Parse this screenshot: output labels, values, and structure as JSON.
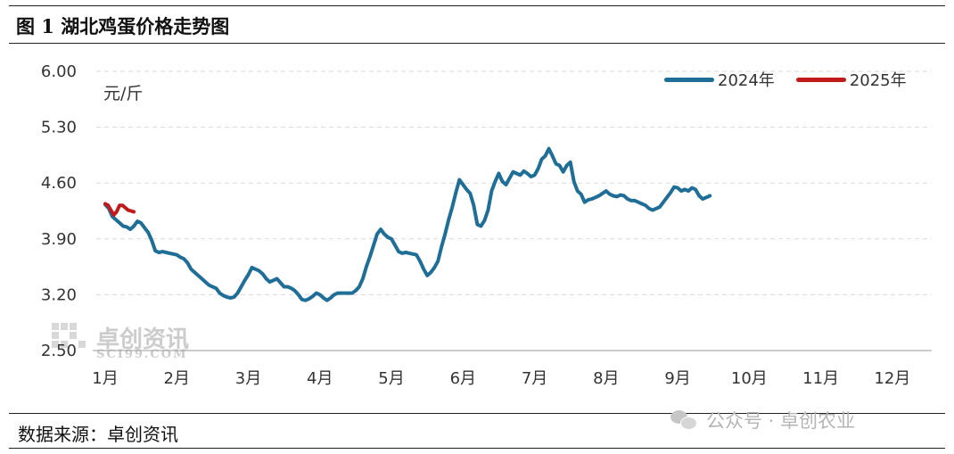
{
  "figure": {
    "title": "图 1  湖北鸡蛋价格走势图",
    "source": "数据来源：卓创资讯",
    "wechat_label": "公众号 · 卓创农业",
    "watermark_text": "卓创资讯",
    "watermark_sub": "SCI99.COM"
  },
  "chart_data": {
    "type": "line",
    "title": "",
    "xlabel": "",
    "ylabel": "元/斤",
    "ylim": [
      2.5,
      6.0
    ],
    "yticks": [
      "6.00",
      "5.30",
      "4.60",
      "3.90",
      "3.20",
      "2.50"
    ],
    "yticks_values": [
      6.0,
      5.3,
      4.6,
      3.9,
      3.2,
      2.5
    ],
    "xticks": [
      "1月",
      "2月",
      "3月",
      "4月",
      "5月",
      "6月",
      "7月",
      "8月",
      "9月",
      "10月",
      "11月",
      "12月"
    ],
    "grid": "horizontal dashed",
    "legend_position": "top-right",
    "series": [
      {
        "name": "2024年",
        "color": "#1f6e97",
        "points": [
          [
            0.0,
            4.33
          ],
          [
            0.05,
            4.28
          ],
          [
            0.1,
            4.18
          ],
          [
            0.15,
            4.14
          ],
          [
            0.2,
            4.1
          ],
          [
            0.25,
            4.06
          ],
          [
            0.3,
            4.05
          ],
          [
            0.35,
            4.02
          ],
          [
            0.4,
            4.06
          ],
          [
            0.45,
            4.12
          ],
          [
            0.5,
            4.1
          ],
          [
            0.55,
            4.04
          ],
          [
            0.6,
            3.98
          ],
          [
            0.65,
            3.88
          ],
          [
            0.7,
            3.75
          ],
          [
            0.75,
            3.73
          ],
          [
            0.8,
            3.74
          ],
          [
            0.85,
            3.73
          ],
          [
            0.9,
            3.72
          ],
          [
            0.95,
            3.71
          ],
          [
            1.0,
            3.7
          ],
          [
            1.05,
            3.67
          ],
          [
            1.1,
            3.65
          ],
          [
            1.15,
            3.6
          ],
          [
            1.2,
            3.52
          ],
          [
            1.25,
            3.48
          ],
          [
            1.3,
            3.44
          ],
          [
            1.35,
            3.4
          ],
          [
            1.4,
            3.36
          ],
          [
            1.45,
            3.32
          ],
          [
            1.5,
            3.3
          ],
          [
            1.55,
            3.28
          ],
          [
            1.6,
            3.22
          ],
          [
            1.65,
            3.19
          ],
          [
            1.7,
            3.17
          ],
          [
            1.75,
            3.16
          ],
          [
            1.8,
            3.17
          ],
          [
            1.85,
            3.22
          ],
          [
            1.9,
            3.3
          ],
          [
            1.95,
            3.38
          ],
          [
            2.0,
            3.45
          ],
          [
            2.05,
            3.54
          ],
          [
            2.1,
            3.52
          ],
          [
            2.15,
            3.5
          ],
          [
            2.2,
            3.46
          ],
          [
            2.25,
            3.4
          ],
          [
            2.3,
            3.36
          ],
          [
            2.35,
            3.38
          ],
          [
            2.4,
            3.4
          ],
          [
            2.45,
            3.35
          ],
          [
            2.5,
            3.3
          ],
          [
            2.55,
            3.3
          ],
          [
            2.6,
            3.28
          ],
          [
            2.65,
            3.25
          ],
          [
            2.7,
            3.2
          ],
          [
            2.75,
            3.14
          ],
          [
            2.8,
            3.13
          ],
          [
            2.85,
            3.15
          ],
          [
            2.9,
            3.18
          ],
          [
            2.95,
            3.22
          ],
          [
            3.0,
            3.2
          ],
          [
            3.05,
            3.16
          ],
          [
            3.1,
            3.13
          ],
          [
            3.15,
            3.16
          ],
          [
            3.2,
            3.2
          ],
          [
            3.25,
            3.22
          ],
          [
            3.3,
            3.22
          ],
          [
            3.35,
            3.22
          ],
          [
            3.4,
            3.22
          ],
          [
            3.45,
            3.22
          ],
          [
            3.5,
            3.25
          ],
          [
            3.55,
            3.3
          ],
          [
            3.6,
            3.4
          ],
          [
            3.65,
            3.55
          ],
          [
            3.7,
            3.68
          ],
          [
            3.75,
            3.82
          ],
          [
            3.8,
            3.96
          ],
          [
            3.85,
            4.02
          ],
          [
            3.9,
            3.96
          ],
          [
            3.95,
            3.92
          ],
          [
            4.0,
            3.9
          ],
          [
            4.05,
            3.82
          ],
          [
            4.1,
            3.74
          ],
          [
            4.15,
            3.72
          ],
          [
            4.2,
            3.73
          ],
          [
            4.25,
            3.72
          ],
          [
            4.3,
            3.71
          ],
          [
            4.35,
            3.7
          ],
          [
            4.4,
            3.62
          ],
          [
            4.45,
            3.52
          ],
          [
            4.5,
            3.44
          ],
          [
            4.55,
            3.48
          ],
          [
            4.6,
            3.54
          ],
          [
            4.65,
            3.62
          ],
          [
            4.7,
            3.8
          ],
          [
            4.75,
            3.96
          ],
          [
            4.8,
            4.14
          ],
          [
            4.85,
            4.3
          ],
          [
            4.9,
            4.48
          ],
          [
            4.95,
            4.64
          ],
          [
            5.0,
            4.58
          ],
          [
            5.05,
            4.52
          ],
          [
            5.1,
            4.47
          ],
          [
            5.15,
            4.32
          ],
          [
            5.2,
            4.08
          ],
          [
            5.25,
            4.06
          ],
          [
            5.3,
            4.13
          ],
          [
            5.35,
            4.26
          ],
          [
            5.4,
            4.5
          ],
          [
            5.45,
            4.62
          ],
          [
            5.5,
            4.72
          ],
          [
            5.55,
            4.62
          ],
          [
            5.6,
            4.58
          ],
          [
            5.65,
            4.66
          ],
          [
            5.7,
            4.74
          ],
          [
            5.75,
            4.72
          ],
          [
            5.8,
            4.7
          ],
          [
            5.85,
            4.75
          ],
          [
            5.9,
            4.72
          ],
          [
            5.95,
            4.68
          ],
          [
            6.0,
            4.7
          ],
          [
            6.05,
            4.78
          ],
          [
            6.1,
            4.9
          ],
          [
            6.15,
            4.94
          ],
          [
            6.2,
            5.03
          ],
          [
            6.25,
            4.94
          ],
          [
            6.3,
            4.84
          ],
          [
            6.35,
            4.82
          ],
          [
            6.4,
            4.74
          ],
          [
            6.45,
            4.82
          ],
          [
            6.5,
            4.86
          ],
          [
            6.55,
            4.62
          ],
          [
            6.6,
            4.5
          ],
          [
            6.65,
            4.46
          ],
          [
            6.7,
            4.36
          ],
          [
            6.75,
            4.39
          ],
          [
            6.8,
            4.4
          ],
          [
            6.85,
            4.42
          ],
          [
            6.9,
            4.44
          ],
          [
            6.95,
            4.47
          ],
          [
            7.0,
            4.5
          ],
          [
            7.05,
            4.46
          ],
          [
            7.1,
            4.44
          ],
          [
            7.15,
            4.43
          ],
          [
            7.2,
            4.45
          ],
          [
            7.25,
            4.44
          ],
          [
            7.3,
            4.4
          ],
          [
            7.35,
            4.38
          ],
          [
            7.4,
            4.38
          ],
          [
            7.45,
            4.36
          ],
          [
            7.5,
            4.34
          ],
          [
            7.55,
            4.32
          ],
          [
            7.6,
            4.28
          ],
          [
            7.65,
            4.26
          ],
          [
            7.7,
            4.28
          ],
          [
            7.75,
            4.3
          ],
          [
            7.8,
            4.36
          ],
          [
            7.85,
            4.42
          ],
          [
            7.9,
            4.48
          ],
          [
            7.95,
            4.55
          ],
          [
            8.0,
            4.54
          ],
          [
            8.05,
            4.5
          ],
          [
            8.1,
            4.52
          ],
          [
            8.15,
            4.5
          ],
          [
            8.2,
            4.54
          ],
          [
            8.25,
            4.52
          ],
          [
            8.3,
            4.44
          ],
          [
            8.35,
            4.4
          ],
          [
            8.4,
            4.42
          ],
          [
            8.45,
            4.44
          ]
        ]
      },
      {
        "name": "2025年",
        "color": "#c11a1a",
        "points": [
          [
            0.0,
            4.34
          ],
          [
            0.04,
            4.32
          ],
          [
            0.08,
            4.26
          ],
          [
            0.12,
            4.2
          ],
          [
            0.16,
            4.24
          ],
          [
            0.2,
            4.32
          ],
          [
            0.24,
            4.32
          ],
          [
            0.28,
            4.29
          ],
          [
            0.32,
            4.26
          ],
          [
            0.36,
            4.25
          ],
          [
            0.4,
            4.24
          ]
        ]
      }
    ]
  }
}
